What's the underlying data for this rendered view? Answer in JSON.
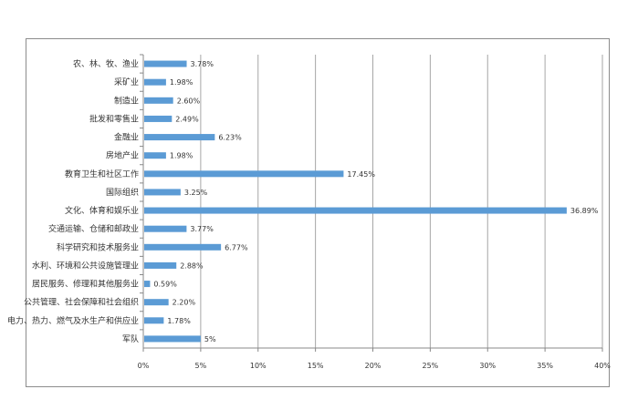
{
  "chart_data": {
    "type": "bar",
    "orientation": "horizontal",
    "categories": [
      "农、林、牧、渔业",
      "采矿业",
      "制造业",
      "批发和零售业",
      "金融业",
      "房地产业",
      "教育卫生和社区工作",
      "国际组织",
      "文化、体育和娱乐业",
      "交通运输、仓储和邮政业",
      "科学研究和技术服务业",
      "水利、环境和公共设施管理业",
      "居民服务、修理和其他服务业",
      "公共管理、社会保障和社会组织",
      "电力、热力、燃气及水生产和供应业",
      "军队"
    ],
    "values": [
      3.78,
      1.98,
      2.6,
      2.49,
      6.23,
      1.98,
      17.45,
      3.25,
      36.89,
      3.77,
      6.77,
      2.88,
      0.59,
      2.2,
      1.78,
      5
    ],
    "data_labels": [
      "3.78%",
      "1.98%",
      "2.60%",
      "2.49%",
      "6.23%",
      "1.98%",
      "17.45%",
      "3.25%",
      "36.89%",
      "3.77%",
      "6.77%",
      "2.88%",
      "0.59%",
      "2.20%",
      "1.78%",
      "5%"
    ],
    "xlim": [
      0,
      40
    ],
    "xticks": [
      "0%",
      "5%",
      "10%",
      "15%",
      "20%",
      "25%",
      "30%",
      "35%",
      "40%"
    ],
    "grid": true,
    "bar_color": "#5b9bd5",
    "grid_color": "#a6a6a6"
  }
}
